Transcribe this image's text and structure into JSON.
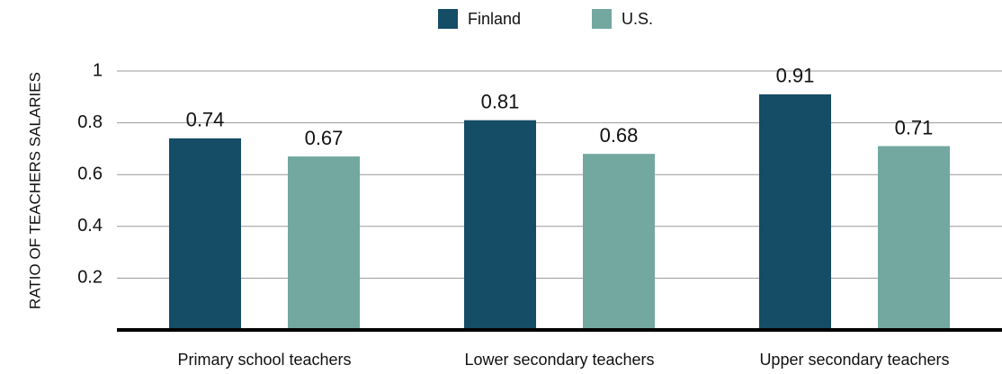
{
  "chart_data": {
    "type": "bar",
    "ylabel": "RATIO OF TEACHERS SALARIES",
    "categories": [
      "Primary school teachers",
      "Lower secondary teachers",
      "Upper secondary teachers"
    ],
    "series": [
      {
        "name": "Finland",
        "color": "#154c66",
        "values": [
          0.74,
          0.81,
          0.91
        ]
      },
      {
        "name": "U.S.",
        "color": "#72a8a0",
        "values": [
          0.67,
          0.68,
          0.71
        ]
      }
    ],
    "ylim": [
      0,
      1
    ],
    "yticks": [
      0.2,
      0.4,
      0.6,
      0.8,
      1
    ],
    "grid": true,
    "legend": "top"
  }
}
